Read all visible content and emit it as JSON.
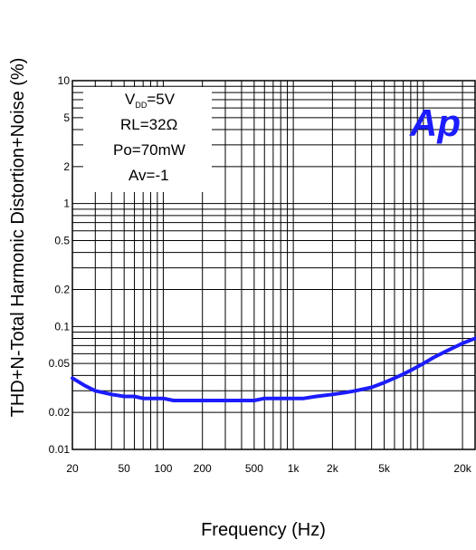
{
  "chart_data": {
    "type": "line",
    "title": "",
    "xlabel": "Frequency (Hz)",
    "ylabel": "THD+N-Total Harmonic Distortion+Noise (%)",
    "xscale": "log",
    "yscale": "log",
    "xlim": [
      20,
      25000
    ],
    "ylim": [
      0.01,
      10
    ],
    "grid": true,
    "x_ticks": [
      {
        "value": 20,
        "label": "20"
      },
      {
        "value": 50,
        "label": "50"
      },
      {
        "value": 100,
        "label": "100"
      },
      {
        "value": 200,
        "label": "200"
      },
      {
        "value": 500,
        "label": "500"
      },
      {
        "value": 1000,
        "label": "1k"
      },
      {
        "value": 2000,
        "label": "2k"
      },
      {
        "value": 5000,
        "label": "5k"
      },
      {
        "value": 20000,
        "label": "20k"
      }
    ],
    "y_ticks": [
      {
        "value": 0.01,
        "label": "0.01"
      },
      {
        "value": 0.02,
        "label": "0.02"
      },
      {
        "value": 0.05,
        "label": "0.05"
      },
      {
        "value": 0.1,
        "label": "0.1"
      },
      {
        "value": 0.2,
        "label": "0.2"
      },
      {
        "value": 0.5,
        "label": "0.5"
      },
      {
        "value": 1,
        "label": "1"
      },
      {
        "value": 2,
        "label": "2"
      },
      {
        "value": 5,
        "label": "5"
      },
      {
        "value": 10,
        "label": "10"
      }
    ],
    "conditions": {
      "vdd_main": "V",
      "vdd_sub": "DD",
      "vdd_value": "=5V",
      "rl": "RL=32Ω",
      "po": "Po=70mW",
      "av": "Av=-1"
    },
    "logo_text": "Ap",
    "series": [
      {
        "color": "#1c1cff",
        "x": [
          20,
          25,
          30,
          40,
          50,
          60,
          70,
          80,
          100,
          120,
          150,
          200,
          300,
          400,
          500,
          600,
          700,
          800,
          1000,
          1200,
          1500,
          2000,
          2500,
          3000,
          4000,
          5000,
          6000,
          7000,
          8000,
          10000,
          12000,
          15000,
          20000,
          25000
        ],
        "y": [
          0.038,
          0.033,
          0.03,
          0.028,
          0.027,
          0.027,
          0.026,
          0.026,
          0.026,
          0.025,
          0.025,
          0.025,
          0.025,
          0.025,
          0.025,
          0.026,
          0.026,
          0.026,
          0.026,
          0.026,
          0.027,
          0.028,
          0.029,
          0.03,
          0.032,
          0.035,
          0.038,
          0.041,
          0.044,
          0.05,
          0.056,
          0.063,
          0.073,
          0.08
        ]
      }
    ]
  }
}
